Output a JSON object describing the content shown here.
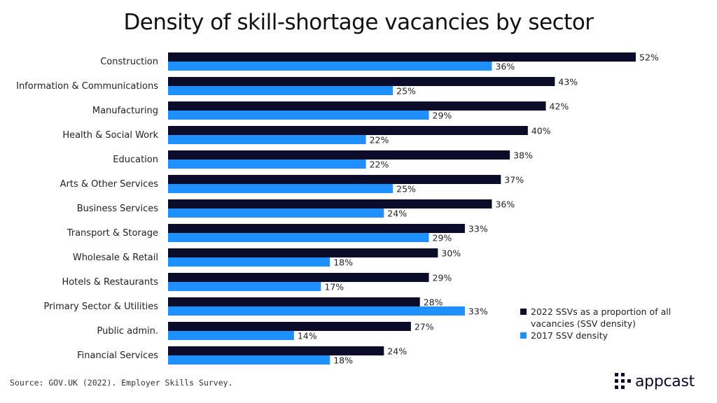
{
  "brand": {
    "name": "appcast"
  },
  "source": "Source: GOV.UK (2022). Employer Skills Survey.",
  "chart_data": {
    "type": "bar",
    "orientation": "horizontal",
    "title": "Density of skill-shortage vacancies by sector",
    "categories": [
      "Construction",
      "Information & Communications",
      "Manufacturing",
      "Health & Social Work",
      "Education",
      "Arts & Other Services",
      "Business Services",
      "Transport & Storage",
      "Wholesale & Retail",
      "Hotels & Restaurants",
      "Primary Sector & Utilities",
      "Public admin.",
      "Financial Services"
    ],
    "series": [
      {
        "name": "2022 SSVs as a proportion of all vacancies (SSV density)",
        "legend_lines": [
          "2022 SSVs as a proportion of all",
          "vacancies (SSV density)"
        ],
        "color": "#0b0b2a",
        "values": [
          52,
          43,
          42,
          40,
          38,
          37,
          36,
          33,
          30,
          29,
          28,
          27,
          24
        ]
      },
      {
        "name": "2017 SSV density",
        "legend_lines": [
          "2017 SSV density"
        ],
        "color": "#1e90ff",
        "values": [
          36,
          25,
          29,
          22,
          22,
          25,
          24,
          29,
          18,
          17,
          33,
          14,
          18
        ]
      }
    ],
    "value_suffix": "%",
    "xlim": [
      0,
      52
    ],
    "grid": false,
    "legend_position": "bottom-right"
  }
}
